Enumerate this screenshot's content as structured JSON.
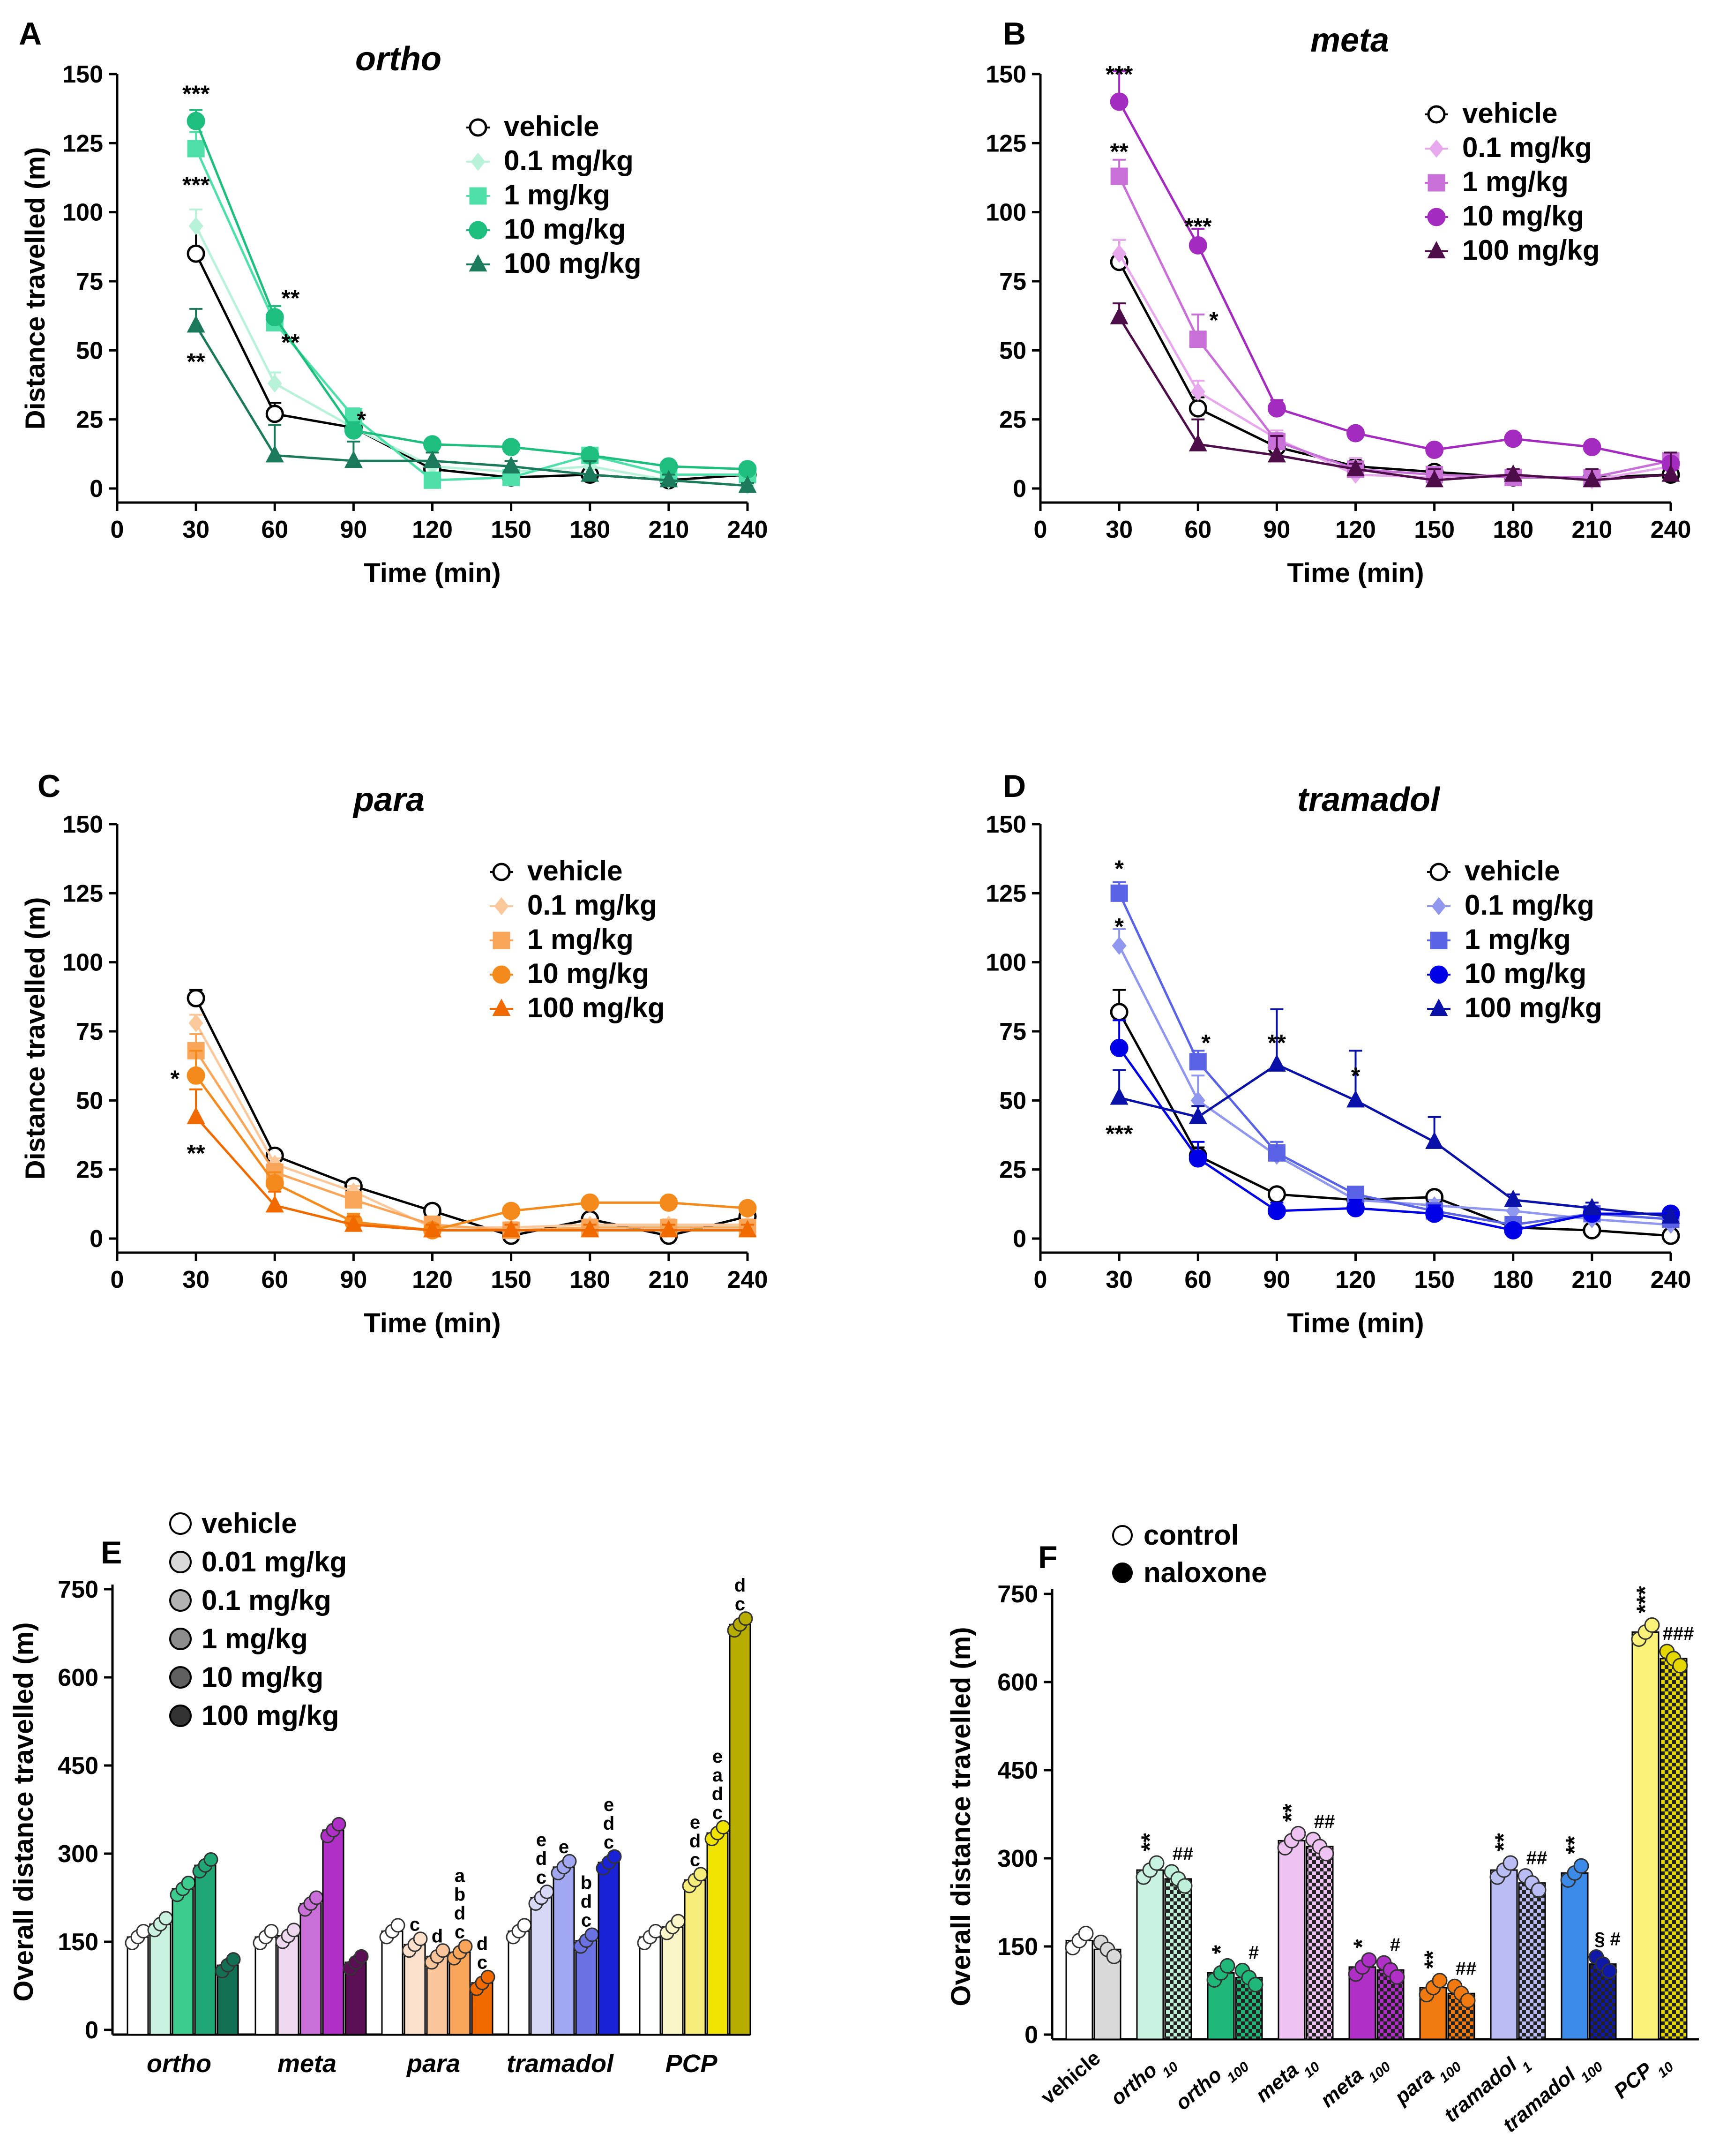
{
  "colors": {
    "ortho": [
      "#ffffff",
      "#c9f2e0",
      "#7be0bb",
      "#3ccd8e",
      "#1fa876",
      "#137055"
    ],
    "meta": [
      "#ffffff",
      "#eed8ef",
      "#e3a9ec",
      "#c86fd8",
      "#b02fc7",
      "#5a0f55"
    ],
    "para": [
      "#ffffff",
      "#fbe0cc",
      "#fbc59b",
      "#f9a55a",
      "#f58a1c",
      "#f06a00"
    ],
    "tramadol": [
      "#ffffff",
      "#d6d8f5",
      "#a1a7f1",
      "#6a71e2",
      "#1a22d8",
      "#1018a8"
    ],
    "pcp": [
      "#ffffff",
      "#fbf6c7",
      "#f6ed7a",
      "#f1e300",
      "#e4d800",
      "#b7ac00"
    ],
    "vehicle_line": "#000000"
  },
  "chart_data": [
    {
      "id": "A",
      "type": "line",
      "panel_letter": "A",
      "title": "ortho",
      "xlabel": "Time (min)",
      "ylabel": "Distance travelled (m)",
      "x_ticks": [
        "0",
        "30",
        "60",
        "90",
        "120",
        "150",
        "180",
        "210",
        "240"
      ],
      "y_ticks": [
        "0",
        "25",
        "50",
        "75",
        "100",
        "125",
        "150"
      ],
      "xlim": [
        0,
        240
      ],
      "ylim": [
        0,
        150
      ],
      "x": [
        30,
        60,
        90,
        120,
        150,
        180,
        210,
        240
      ],
      "legend_position": "top-right",
      "series": [
        {
          "name": "vehicle",
          "marker": "circle",
          "color": "#000000",
          "filled": false,
          "values": [
            85,
            27,
            22,
            7,
            4,
            5,
            3,
            5
          ],
          "err": [
            10,
            4,
            3,
            2,
            1,
            2,
            1,
            2
          ]
        },
        {
          "name": "0.1 mg/kg",
          "marker": "diamond",
          "color": "#b8f2d8",
          "filled": true,
          "values": [
            95,
            38,
            22,
            8,
            6,
            8,
            3,
            1
          ],
          "err": [
            6,
            4,
            3,
            2,
            2,
            2,
            1,
            1
          ]
        },
        {
          "name": "1 mg/kg",
          "marker": "square",
          "color": "#4ee0a8",
          "filled": true,
          "values": [
            123,
            60,
            26,
            3,
            4,
            12,
            5,
            5
          ],
          "err": [
            6,
            4,
            3,
            1,
            1,
            2,
            1,
            1
          ]
        },
        {
          "name": "10 mg/kg",
          "marker": "circle",
          "color": "#1ebf7e",
          "filled": true,
          "values": [
            133,
            62,
            21,
            16,
            15,
            12,
            8,
            7
          ],
          "err": [
            4,
            4,
            3,
            2,
            2,
            2,
            1,
            1
          ]
        },
        {
          "name": "100 mg/kg",
          "marker": "triangle",
          "color": "#1b7a5c",
          "filled": true,
          "values": [
            59,
            12,
            10,
            10,
            8,
            5,
            3,
            1
          ],
          "err": [
            6,
            11,
            7,
            3,
            2,
            5,
            2,
            1
          ]
        }
      ],
      "annotations": [
        {
          "x": 30,
          "y": 140,
          "text": "***"
        },
        {
          "x": 30,
          "y": 107,
          "text": "***"
        },
        {
          "x": 30,
          "y": 43,
          "text": "**"
        },
        {
          "x": 66,
          "y": 66,
          "text": "**"
        },
        {
          "x": 66,
          "y": 50,
          "text": "**"
        },
        {
          "x": 93,
          "y": 22,
          "text": "*"
        }
      ]
    },
    {
      "id": "B",
      "type": "line",
      "panel_letter": "B",
      "title": "meta",
      "xlabel": "Time (min)",
      "ylabel": "",
      "x_ticks": [
        "0",
        "30",
        "60",
        "90",
        "120",
        "150",
        "180",
        "210",
        "240"
      ],
      "y_ticks": [
        "0",
        "25",
        "50",
        "75",
        "100",
        "125",
        "150"
      ],
      "xlim": [
        0,
        240
      ],
      "ylim": [
        0,
        150
      ],
      "x": [
        30,
        60,
        90,
        120,
        150,
        180,
        210,
        240
      ],
      "legend_position": "top-right",
      "series": [
        {
          "name": "vehicle",
          "marker": "circle",
          "color": "#000000",
          "filled": false,
          "values": [
            82,
            29,
            15,
            8,
            6,
            4,
            4,
            5
          ],
          "err": [
            8,
            4,
            3,
            2,
            2,
            2,
            2,
            2
          ]
        },
        {
          "name": "0.1 mg/kg",
          "marker": "diamond",
          "color": "#e7a8ee",
          "filled": true,
          "values": [
            85,
            35,
            18,
            5,
            4,
            5,
            3,
            8
          ],
          "err": [
            5,
            4,
            3,
            6,
            2,
            2,
            2,
            2
          ]
        },
        {
          "name": "1 mg/kg",
          "marker": "square",
          "color": "#c86fd8",
          "filled": true,
          "values": [
            113,
            54,
            17,
            7,
            5,
            4,
            4,
            10
          ],
          "err": [
            6,
            9,
            3,
            2,
            2,
            2,
            2,
            2
          ]
        },
        {
          "name": "10 mg/kg",
          "marker": "circle",
          "color": "#a42bc0",
          "filled": true,
          "values": [
            140,
            88,
            29,
            20,
            14,
            18,
            15,
            9
          ],
          "err": [
            11,
            6,
            3,
            2,
            2,
            2,
            2,
            2
          ]
        },
        {
          "name": "100 mg/kg",
          "marker": "triangle",
          "color": "#4d0d48",
          "filled": true,
          "values": [
            62,
            16,
            12,
            7,
            3,
            5,
            3,
            5
          ],
          "err": [
            5,
            9,
            7,
            2,
            4,
            2,
            4,
            8
          ]
        }
      ],
      "annotations": [
        {
          "x": 30,
          "y": 147,
          "text": "***"
        },
        {
          "x": 30,
          "y": 119,
          "text": "**"
        },
        {
          "x": 60,
          "y": 92,
          "text": "***"
        },
        {
          "x": 66,
          "y": 58,
          "text": "*"
        }
      ]
    },
    {
      "id": "C",
      "type": "line",
      "panel_letter": "C",
      "title": "para",
      "xlabel": "Time (min)",
      "ylabel": "Distance travelled (m)",
      "x_ticks": [
        "0",
        "30",
        "60",
        "90",
        "120",
        "150",
        "180",
        "210",
        "240"
      ],
      "y_ticks": [
        "0",
        "25",
        "50",
        "75",
        "100",
        "125",
        "150"
      ],
      "xlim": [
        0,
        240
      ],
      "ylim": [
        0,
        150
      ],
      "x": [
        30,
        60,
        90,
        120,
        150,
        180,
        210,
        240
      ],
      "legend_position": "top-right",
      "series": [
        {
          "name": "vehicle",
          "marker": "circle",
          "color": "#000000",
          "filled": false,
          "values": [
            87,
            30,
            19,
            10,
            1,
            7,
            1,
            8
          ],
          "err": [
            3,
            2,
            2,
            2,
            2,
            2,
            1,
            2
          ]
        },
        {
          "name": "0.1 mg/kg",
          "marker": "diamond",
          "color": "#fbc89c",
          "filled": true,
          "values": [
            78,
            27,
            17,
            4,
            4,
            5,
            5,
            5
          ],
          "err": [
            3,
            2,
            2,
            2,
            2,
            2,
            2,
            2
          ]
        },
        {
          "name": "1 mg/kg",
          "marker": "square",
          "color": "#f9a55a",
          "filled": true,
          "values": [
            68,
            24,
            14,
            5,
            3,
            4,
            4,
            4
          ],
          "err": [
            6,
            3,
            2,
            3,
            2,
            2,
            2,
            2
          ]
        },
        {
          "name": "10 mg/kg",
          "marker": "circle",
          "color": "#f58a1c",
          "filled": true,
          "values": [
            59,
            20,
            6,
            3,
            10,
            13,
            13,
            11
          ],
          "err": [
            9,
            4,
            3,
            2,
            2,
            2,
            2,
            2
          ]
        },
        {
          "name": "100 mg/kg",
          "marker": "triangle",
          "color": "#f06a00",
          "filled": true,
          "values": [
            44,
            12,
            5,
            3,
            3,
            3,
            3,
            3
          ],
          "err": [
            10,
            5,
            3,
            2,
            2,
            2,
            2,
            2
          ]
        }
      ],
      "annotations": [
        {
          "x": 22,
          "y": 55,
          "text": "*"
        },
        {
          "x": 30,
          "y": 28,
          "text": "**"
        }
      ]
    },
    {
      "id": "D",
      "type": "line",
      "panel_letter": "D",
      "title": "tramadol",
      "xlabel": "Time (min)",
      "ylabel": "",
      "x_ticks": [
        "0",
        "30",
        "60",
        "90",
        "120",
        "150",
        "180",
        "210",
        "240"
      ],
      "y_ticks": [
        "0",
        "25",
        "50",
        "75",
        "100",
        "125",
        "150"
      ],
      "xlim": [
        0,
        240
      ],
      "ylim": [
        0,
        150
      ],
      "x": [
        30,
        60,
        90,
        120,
        150,
        180,
        210,
        240
      ],
      "legend_position": "top-right",
      "series": [
        {
          "name": "vehicle",
          "marker": "circle",
          "color": "#000000",
          "filled": false,
          "values": [
            82,
            30,
            16,
            14,
            15,
            4,
            3,
            1
          ],
          "err": [
            8,
            3,
            2,
            2,
            2,
            2,
            5,
            2
          ]
        },
        {
          "name": "0.1 mg/kg",
          "marker": "diamond",
          "color": "#8f97ef",
          "filled": true,
          "values": [
            106,
            50,
            30,
            14,
            12,
            10,
            7,
            5
          ],
          "err": [
            6,
            9,
            5,
            2,
            2,
            2,
            2,
            2
          ]
        },
        {
          "name": "1 mg/kg",
          "marker": "square",
          "color": "#5a63e6",
          "filled": true,
          "values": [
            125,
            64,
            31,
            16,
            10,
            5,
            9,
            7
          ],
          "err": [
            4,
            4,
            4,
            2,
            2,
            2,
            2,
            2
          ]
        },
        {
          "name": "10 mg/kg",
          "marker": "circle",
          "color": "#0000e6",
          "filled": true,
          "values": [
            69,
            29,
            10,
            11,
            9,
            3,
            9,
            9
          ],
          "err": [
            10,
            6,
            3,
            3,
            3,
            2,
            2,
            2
          ]
        },
        {
          "name": "100 mg/kg",
          "marker": "triangle",
          "color": "#0a11a8",
          "filled": true,
          "values": [
            51,
            44,
            63,
            50,
            35,
            14,
            11,
            8
          ],
          "err": [
            10,
            4,
            20,
            18,
            9,
            2,
            2,
            2
          ]
        }
      ],
      "annotations": [
        {
          "x": 30,
          "y": 131,
          "text": "*"
        },
        {
          "x": 30,
          "y": 110,
          "text": "*"
        },
        {
          "x": 30,
          "y": 35,
          "text": "***"
        },
        {
          "x": 63,
          "y": 68,
          "text": "*"
        },
        {
          "x": 90,
          "y": 68,
          "text": "**"
        },
        {
          "x": 120,
          "y": 56,
          "text": "*"
        }
      ]
    },
    {
      "id": "E",
      "type": "bar",
      "panel_letter": "E",
      "title": "",
      "xlabel": "",
      "ylabel": "Overall distance travelled (m)",
      "y_ticks": [
        "0",
        "150",
        "300",
        "450",
        "600",
        "750"
      ],
      "ylim": [
        0,
        750
      ],
      "categories": [
        "ortho",
        "meta",
        "para",
        "tramadol",
        "PCP"
      ],
      "legend_position": "top-left",
      "legend": [
        "vehicle",
        "0.01 mg/kg",
        "0.1 mg/kg",
        "1 mg/kg",
        "10 mg/kg",
        "100 mg/kg"
      ],
      "legend_shades": [
        "#ffffff",
        "#d9d9d9",
        "#b3b3b3",
        "#8c8c8c",
        "#5f5f5f",
        "#333333"
      ],
      "groups": [
        {
          "name": "ortho",
          "palette": "ortho",
          "values": [
            158,
            180,
            240,
            280,
            110
          ],
          "dose_index": [
            0,
            1,
            3,
            4,
            5
          ],
          "letters": [
            "",
            "",
            "",
            "",
            ""
          ]
        },
        {
          "name": "meta",
          "palette": "meta",
          "values": [
            158,
            160,
            215,
            340,
            115
          ],
          "dose_index": [
            0,
            1,
            3,
            4,
            5
          ],
          "letters": [
            "",
            "",
            "",
            "",
            ""
          ]
        },
        {
          "name": "para",
          "palette": "para",
          "values": [
            168,
            145,
            125,
            132,
            80
          ],
          "dose_index": [
            0,
            1,
            2,
            3,
            5
          ],
          "letters": [
            "",
            "c",
            "d",
            "a b d c",
            "d c"
          ]
        },
        {
          "name": "tramadol",
          "palette": "tramadol",
          "values": [
            168,
            225,
            277,
            152,
            285
          ],
          "dose_index": [
            0,
            1,
            2,
            3,
            4
          ],
          "letters": [
            "",
            "e d c",
            "e",
            "b d c",
            "e d c"
          ]
        },
        {
          "name": "PCP",
          "palette": "pcp",
          "values": [
            158,
            175,
            255,
            335,
            690
          ],
          "dose_index": [
            0,
            1,
            2,
            3,
            5
          ],
          "letters": [
            "",
            "",
            "e d c",
            "e a d c",
            "d c"
          ]
        }
      ]
    },
    {
      "id": "F",
      "type": "bar",
      "panel_letter": "F",
      "title": "",
      "xlabel": "",
      "ylabel": "Overall distance travelled (m)",
      "y_ticks": [
        "0",
        "150",
        "300",
        "450",
        "600",
        "750"
      ],
      "ylim": [
        0,
        750
      ],
      "legend_position": "top-left",
      "legend": [
        "control",
        "naloxone"
      ],
      "categories": [
        {
          "main": "vehicle",
          "sub": "",
          "italic": false
        },
        {
          "main": "ortho",
          "sub": "10",
          "italic": true
        },
        {
          "main": "ortho",
          "sub": "100",
          "italic": true
        },
        {
          "main": "meta",
          "sub": "10",
          "italic": true
        },
        {
          "main": "meta",
          "sub": "100",
          "italic": true
        },
        {
          "main": "para",
          "sub": "100",
          "italic": true
        },
        {
          "main": "tramadol",
          "sub": "1",
          "italic": true
        },
        {
          "main": "tramadol",
          "sub": "100",
          "italic": true
        },
        {
          "main": "PCP",
          "sub": "10",
          "italic": true
        }
      ],
      "series": [
        {
          "name": "control",
          "values": [
            160,
            280,
            105,
            330,
            115,
            80,
            280,
            275,
            685
          ]
        },
        {
          "name": "naloxone",
          "values": [
            145,
            265,
            97,
            320,
            110,
            70,
            258,
            120,
            640
          ]
        }
      ],
      "bar_colors": [
        [
          "#ffffff",
          "#d9d9d9"
        ],
        [
          "#c9f2e0",
          "#bff0da"
        ],
        [
          "#1fb879",
          "#1fb879"
        ],
        [
          "#efc3f1",
          "#efc3f1"
        ],
        [
          "#b02fc7",
          "#b02fc7"
        ],
        [
          "#f07a10",
          "#f07a10"
        ],
        [
          "#b9bdf4",
          "#b9bdf4"
        ],
        [
          "#3c8ae8",
          "#1018a8"
        ],
        [
          "#fbf27a",
          "#e4d800"
        ]
      ],
      "sig_control": [
        "",
        "**",
        "*",
        "**",
        "*",
        "**",
        "**",
        "**",
        "***"
      ],
      "sig_naloxone": [
        "",
        "##",
        "#",
        "##",
        "#",
        "##",
        "##",
        "§ #",
        "###"
      ]
    }
  ]
}
